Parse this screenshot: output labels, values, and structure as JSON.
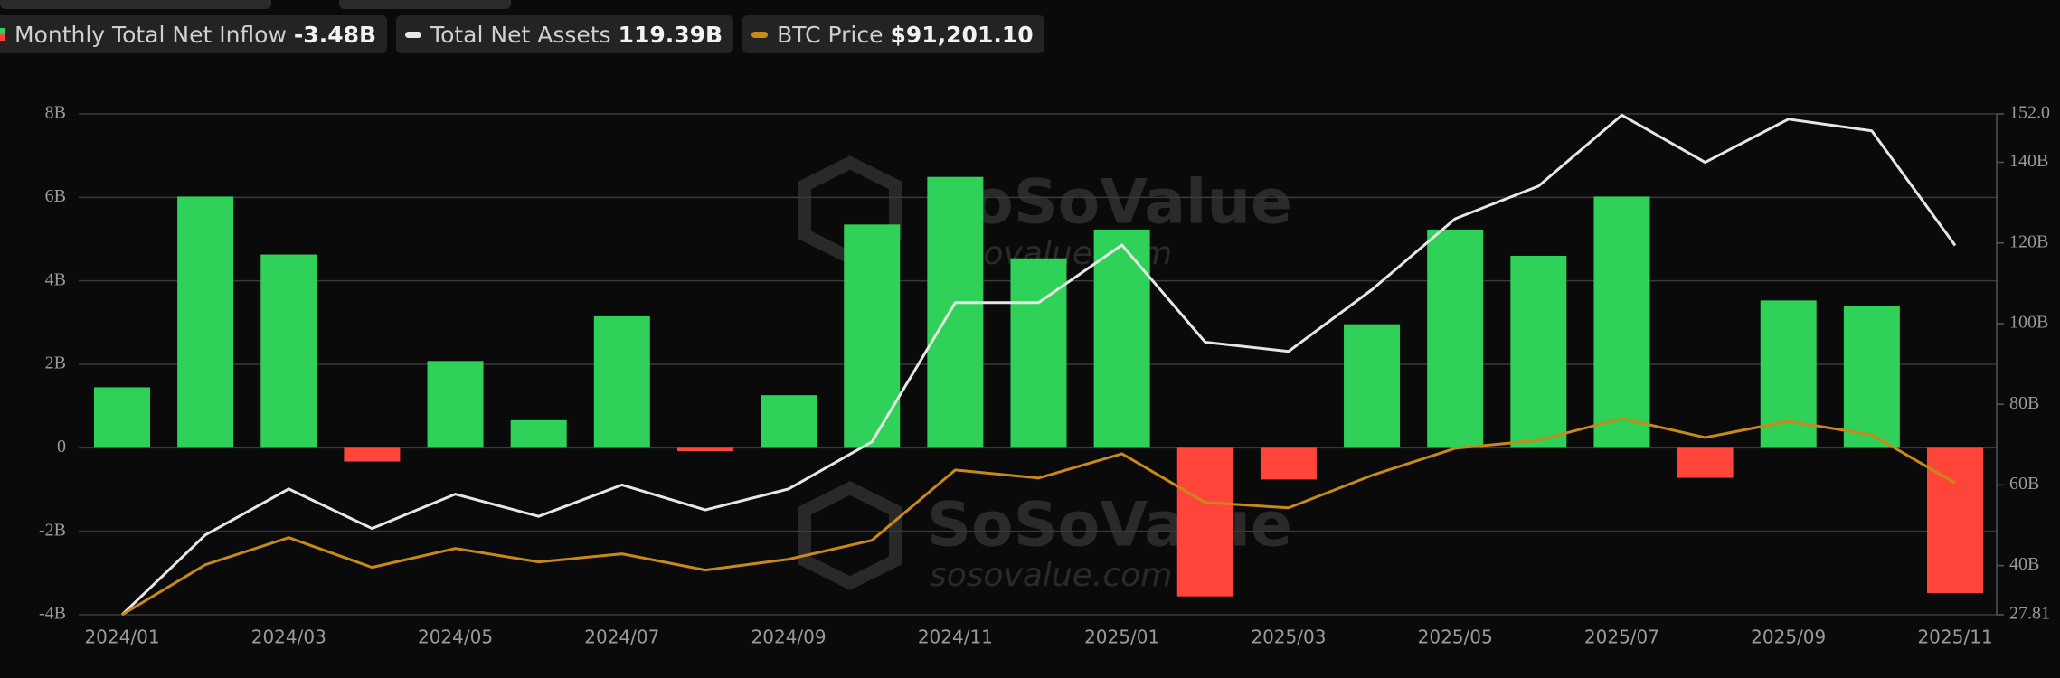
{
  "chart_data": {
    "type": "bar",
    "watermark": {
      "text": "SoSoValue",
      "url": "sosovalue.com"
    },
    "categories": [
      "2024/01",
      null,
      "2024/03",
      null,
      "2024/05",
      null,
      "2024/07",
      null,
      "2024/09",
      null,
      "2024/11",
      null,
      "2025/01",
      null,
      "2025/03",
      null,
      "2025/05",
      null,
      "2025/07",
      null,
      "2025/09",
      null,
      "2025/11"
    ],
    "ylim": [
      -4,
      8
    ],
    "yticks": [
      {
        "value": -4,
        "label": "-4B"
      },
      {
        "value": -2,
        "label": "-2B"
      },
      0,
      {
        "value": 2,
        "label": "2B"
      },
      {
        "value": 4,
        "label": "4B"
      },
      {
        "value": 6,
        "label": "6B"
      },
      {
        "value": 8,
        "label": "8B"
      }
    ],
    "y2lim": [
      27.81,
      152.0
    ],
    "y2ticks": [
      27.81,
      {
        "value": 40,
        "label": "40B"
      },
      {
        "value": 60,
        "label": "60B"
      },
      {
        "value": 80,
        "label": "80B"
      },
      {
        "value": 100,
        "label": "100B"
      },
      {
        "value": 120,
        "label": "120B"
      },
      {
        "value": 140,
        "label": "140B"
      },
      {
        "value": 152.0,
        "label": "152.0"
      }
    ],
    "grid": true,
    "series": [
      {
        "name": "Monthly Total Net Inflow",
        "latest_label": "-3.48B",
        "type": "bar",
        "color": "#30d158",
        "negative_color": "#ff453a",
        "values": [
          1.45,
          6.02,
          4.63,
          -0.33,
          2.08,
          0.66,
          3.15,
          -0.08,
          1.26,
          5.35,
          6.49,
          4.54,
          5.23,
          -3.56,
          -0.76,
          2.96,
          5.23,
          4.6,
          6.02,
          -0.72,
          3.53,
          3.4,
          -3.48
        ]
      },
      {
        "name": "Total Net Assets",
        "latest_label": "119.39B",
        "type": "line",
        "axis": "y2",
        "color": "#e6e6e6",
        "values": [
          27.81,
          47.6,
          59.0,
          49.2,
          57.7,
          52.2,
          60.0,
          53.8,
          59.0,
          70.7,
          105.2,
          105.2,
          119.5,
          95.4,
          93.1,
          108.4,
          126.0,
          134.1,
          151.7,
          140.0,
          150.7,
          147.8,
          119.39
        ]
      },
      {
        "name": "BTC Price",
        "latest_label": "$91,201.10",
        "type": "line",
        "axis": "own",
        "color": "#c8891a",
        "values": [
          42500,
          61000,
          71000,
          60000,
          67000,
          62000,
          65000,
          59000,
          63000,
          70000,
          96000,
          93000,
          102000,
          84000,
          82000,
          94000,
          104000,
          107000,
          115000,
          108000,
          114000,
          109000,
          91201.1
        ]
      }
    ]
  }
}
